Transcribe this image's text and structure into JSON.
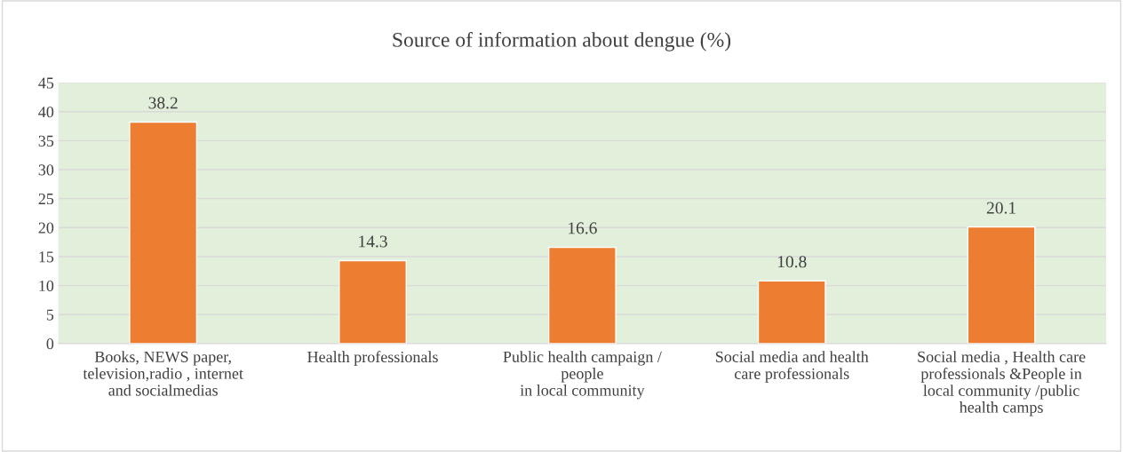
{
  "chart_data": {
    "type": "bar",
    "title": "Source of information about dengue (%)",
    "categories": [
      "Books, NEWS paper,\ntelevision,radio , internet\nand socialmedias",
      "Health professionals",
      "Public health campaign /\npeople\nin local community",
      "Social media and health\ncare professionals",
      "Social media , Health care\nprofessionals &People in\nlocal community /public\nhealth camps"
    ],
    "values": [
      38.2,
      14.3,
      16.6,
      10.8,
      20.1
    ],
    "color": "#ed7d31",
    "ylim": [
      0,
      45
    ],
    "yticks": [
      0,
      5,
      10,
      15,
      20,
      25,
      30,
      35,
      40,
      45
    ],
    "grid": "y",
    "data_labels": true,
    "legend": false
  }
}
